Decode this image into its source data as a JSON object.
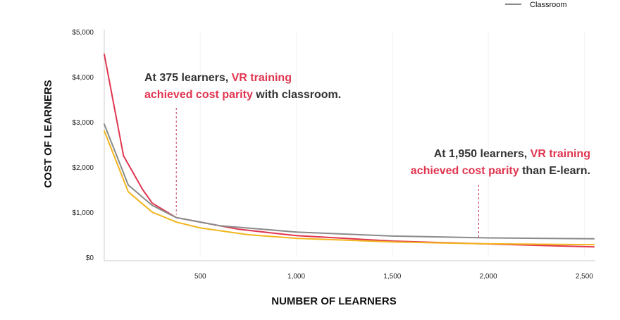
{
  "chart_data": {
    "type": "line",
    "xlabel": "NUMBER OF LEARNERS",
    "ylabel": "COST OF LEARNERS",
    "xlim": [
      0,
      2550
    ],
    "ylim": [
      0,
      5000
    ],
    "x_ticks": [
      {
        "value": 500,
        "label": "500"
      },
      {
        "value": 1000,
        "label": "1,000"
      },
      {
        "value": 1500,
        "label": "1,500"
      },
      {
        "value": 2000,
        "label": "2,000"
      },
      {
        "value": 2500,
        "label": "2,500"
      }
    ],
    "y_ticks": [
      {
        "value": 0,
        "label": "$0"
      },
      {
        "value": 1000,
        "label": "$1,000"
      },
      {
        "value": 2000,
        "label": "$2,000"
      },
      {
        "value": 3000,
        "label": "$3,000"
      },
      {
        "value": 4000,
        "label": "$4,000"
      },
      {
        "value": 5000,
        "label": "$5,000"
      }
    ],
    "legend": {
      "position": "top-right",
      "visible_entry": "Classroom"
    },
    "series": [
      {
        "name": "",
        "color": "#e0354f",
        "points": [
          [
            0,
            4500
          ],
          [
            100,
            2250
          ],
          [
            200,
            1500
          ],
          [
            250,
            1200
          ],
          [
            375,
            880
          ],
          [
            500,
            780
          ],
          [
            700,
            620
          ],
          [
            1000,
            480
          ],
          [
            1500,
            360
          ],
          [
            1950,
            300
          ],
          [
            2550,
            230
          ]
        ]
      },
      {
        "name": "Classroom",
        "color": "#8a8a8a",
        "points": [
          [
            0,
            2950
          ],
          [
            125,
            1600
          ],
          [
            250,
            1150
          ],
          [
            375,
            880
          ],
          [
            500,
            780
          ],
          [
            600,
            700
          ],
          [
            1000,
            560
          ],
          [
            1500,
            470
          ],
          [
            2000,
            430
          ],
          [
            2550,
            410
          ]
        ]
      },
      {
        "name": "",
        "color": "#f2b51d",
        "points": [
          [
            0,
            2800
          ],
          [
            125,
            1450
          ],
          [
            250,
            1000
          ],
          [
            375,
            780
          ],
          [
            500,
            650
          ],
          [
            750,
            500
          ],
          [
            1000,
            420
          ],
          [
            1500,
            340
          ],
          [
            1950,
            300
          ],
          [
            2550,
            280
          ]
        ]
      }
    ],
    "annotations": [
      {
        "x": 375,
        "segments": [
          [
            {
              "text": "At 375 learners, ",
              "color": "#333333"
            },
            {
              "text": "VR training",
              "color": "#e0354f"
            }
          ],
          [
            {
              "text": "achieved cost parity",
              "color": "#e0354f"
            },
            {
              "text": " with classroom.",
              "color": "#333333"
            }
          ]
        ]
      },
      {
        "x": 1950,
        "segments": [
          [
            {
              "text": "At 1,950 learners, ",
              "color": "#333333"
            },
            {
              "text": "VR training",
              "color": "#e0354f"
            }
          ],
          [
            {
              "text": "achieved cost parity",
              "color": "#e0354f"
            },
            {
              "text": " than E-learn.",
              "color": "#333333"
            }
          ]
        ]
      }
    ]
  }
}
